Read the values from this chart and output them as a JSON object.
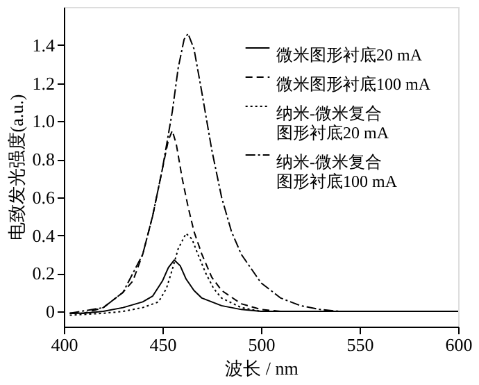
{
  "chart_data": {
    "type": "line",
    "xlabel": "波长 / nm",
    "ylabel": "电致发光强度(a.u.)",
    "xlim": [
      400,
      600
    ],
    "xticks": [
      400,
      450,
      500,
      550,
      600
    ],
    "ylim": [
      -0.08,
      1.6
    ],
    "yticks": [
      {
        "value": 0,
        "label": "0"
      },
      0.2,
      0.4,
      0.6,
      0.8,
      {
        "value": 1,
        "label": "1.0"
      },
      1.2,
      1.4
    ],
    "grid": false,
    "legend": "top right",
    "marker": "none",
    "series": [
      {
        "name": "微米图形衬底20 mA",
        "color": "#000000",
        "line_style": "solid",
        "x": [
          403,
          410,
          420,
          430,
          440,
          445,
          450,
          453,
          456,
          459,
          462,
          466,
          470,
          480,
          490,
          500,
          520,
          600
        ],
        "values": [
          -0.01,
          -0.01,
          0,
          0.02,
          0.05,
          0.08,
          0.16,
          0.23,
          0.27,
          0.24,
          0.17,
          0.11,
          0.07,
          0.03,
          0.01,
          0,
          0,
          0
        ]
      },
      {
        "name": "微米图形衬底100 mA",
        "color": "#000000",
        "line_style": "dashed",
        "x": [
          403,
          410,
          420,
          430,
          435,
          440,
          445,
          450,
          453,
          455,
          457,
          460,
          463,
          466,
          470,
          475,
          480,
          490,
          500,
          510,
          600
        ],
        "values": [
          -0.01,
          -0.01,
          0.02,
          0.1,
          0.16,
          0.3,
          0.5,
          0.75,
          0.9,
          0.95,
          0.88,
          0.7,
          0.55,
          0.42,
          0.3,
          0.18,
          0.11,
          0.04,
          0.01,
          0,
          0
        ]
      },
      {
        "name": "纳米-微米复合图形衬底20 mA",
        "color": "#000000",
        "line_style": "dotted",
        "x": [
          403,
          420,
          430,
          440,
          448,
          452,
          455,
          458,
          462,
          465,
          468,
          472,
          476,
          480,
          490,
          500,
          600
        ],
        "values": [
          -0.02,
          -0.01,
          0,
          0.02,
          0.05,
          0.12,
          0.22,
          0.33,
          0.41,
          0.38,
          0.3,
          0.2,
          0.12,
          0.07,
          0.02,
          0,
          0
        ]
      },
      {
        "name": "纳米-微米复合图形衬底100 mA",
        "color": "#000000",
        "line_style": "dashdot",
        "x": [
          403,
          420,
          430,
          440,
          445,
          450,
          455,
          458,
          461,
          463,
          466,
          470,
          475,
          480,
          485,
          490,
          500,
          510,
          520,
          530,
          540,
          600
        ],
        "values": [
          -0.01,
          0.02,
          0.1,
          0.3,
          0.5,
          0.75,
          1.05,
          1.28,
          1.43,
          1.46,
          1.38,
          1.15,
          0.85,
          0.6,
          0.42,
          0.3,
          0.15,
          0.07,
          0.03,
          0.01,
          0,
          0
        ]
      }
    ]
  }
}
